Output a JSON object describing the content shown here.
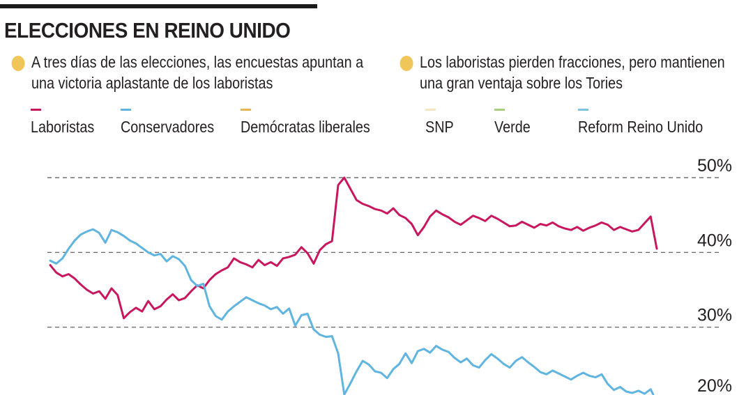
{
  "header": {
    "title": "ELECCIONES EN REINO UNIDO"
  },
  "notes": [
    "A tres días de las elecciones, las encuestas apuntan a una victoria aplastante de los laboristas",
    "Los laboristas pierden fracciones, pero mantienen una gran ventaja sobre los Tories"
  ],
  "colors": {
    "note_dot": "#f0c55a",
    "grid": "#555555"
  },
  "chart_data": {
    "type": "line",
    "title": "ELECCIONES EN REINO UNIDO",
    "xlabel": "",
    "ylabel": "",
    "ylim": [
      20,
      52
    ],
    "yticks": [
      20,
      30,
      40,
      50
    ],
    "ytick_labels": [
      "20%",
      "30%",
      "40%",
      "50%"
    ],
    "grid": true,
    "legend": [
      {
        "name": "Laboristas",
        "color": "#c8175e"
      },
      {
        "name": "Conservadores",
        "color": "#5fb4e0"
      },
      {
        "name": "Demócratas liberales",
        "color": "#eab259"
      },
      {
        "name": "SNP",
        "color": "#f5e6bf"
      },
      {
        "name": "Verde",
        "color": "#a9cf7a"
      },
      {
        "name": "Reform Reino Unido",
        "color": "#7cc3e6"
      }
    ],
    "series": [
      {
        "name": "Laboristas",
        "color": "#c8175e",
        "x": [
          0,
          1,
          2,
          3,
          4,
          5,
          6,
          7,
          8,
          9,
          10,
          11,
          12,
          13,
          14,
          15,
          16,
          17,
          18,
          19,
          20,
          21,
          22,
          23,
          24,
          25,
          26,
          27,
          28,
          29,
          30,
          31,
          32,
          33,
          34,
          35,
          36,
          37,
          38,
          39,
          40,
          41,
          42,
          43,
          44,
          45,
          46,
          47,
          48,
          49,
          50,
          51,
          52,
          53,
          54,
          55,
          56,
          57,
          58,
          59,
          60,
          61,
          62,
          63,
          64,
          65,
          66,
          67,
          68,
          69,
          70,
          71,
          72,
          73,
          74,
          75,
          76,
          77,
          78,
          79,
          80,
          81,
          82,
          83,
          84,
          85,
          86,
          87,
          88,
          89,
          90,
          91,
          92,
          93,
          94,
          95,
          96,
          97,
          98,
          99
        ],
        "values": [
          38.3,
          37.3,
          36.8,
          37.1,
          36.5,
          35.7,
          35.0,
          34.5,
          34.8,
          33.8,
          35.2,
          34.3,
          31.2,
          32.0,
          32.6,
          32.1,
          33.5,
          32.4,
          32.8,
          33.7,
          34.4,
          33.6,
          33.9,
          34.8,
          35.6,
          35.2,
          36.3,
          37.1,
          37.6,
          38.0,
          39.2,
          38.7,
          38.4,
          38.0,
          39.0,
          38.3,
          38.7,
          38.2,
          39.2,
          39.4,
          39.7,
          40.7,
          39.9,
          38.5,
          40.3,
          41.1,
          41.5,
          49.0,
          50.0,
          48.5,
          47.0,
          46.5,
          46.2,
          45.8,
          45.6,
          45.2,
          45.9,
          45.0,
          44.6,
          43.8,
          42.3,
          43.4,
          44.8,
          45.6,
          45.1,
          44.7,
          44.1,
          43.7,
          44.3,
          44.9,
          44.6,
          44.2,
          44.9,
          44.5,
          44.0,
          43.5,
          43.6,
          44.1,
          43.7,
          43.3,
          43.8,
          43.6,
          44.0,
          43.5,
          43.2,
          43.0,
          43.4,
          42.9,
          43.3,
          43.6,
          44.0,
          43.7,
          43.0,
          43.4,
          43.1,
          42.8,
          43.0,
          43.9,
          44.8,
          40.5
        ],
        "note": "x is an ordinal poll index (no x-axis labels shown)"
      },
      {
        "name": "Conservadores",
        "color": "#5fb4e0",
        "x": [
          0,
          1,
          2,
          3,
          4,
          5,
          6,
          7,
          8,
          9,
          10,
          11,
          12,
          13,
          14,
          15,
          16,
          17,
          18,
          19,
          20,
          21,
          22,
          23,
          24,
          25,
          26,
          27,
          28,
          29,
          30,
          31,
          32,
          33,
          34,
          35,
          36,
          37,
          38,
          39,
          40,
          41,
          42,
          43,
          44,
          45,
          46,
          47,
          48,
          49,
          50,
          51,
          52,
          53,
          54,
          55,
          56,
          57,
          58,
          59,
          60,
          61,
          62,
          63,
          64,
          65,
          66,
          67,
          68,
          69,
          70,
          71,
          72,
          73,
          74,
          75,
          76,
          77,
          78,
          79,
          80,
          81,
          82,
          83,
          84,
          85,
          86,
          87,
          88,
          89,
          90,
          91,
          92,
          93,
          94,
          95,
          96,
          97,
          98,
          99
        ],
        "values": [
          38.9,
          38.5,
          39.2,
          40.5,
          41.6,
          42.4,
          42.8,
          43.1,
          42.6,
          41.3,
          43.0,
          42.7,
          42.2,
          41.6,
          41.2,
          40.6,
          40.0,
          39.6,
          39.8,
          38.8,
          39.5,
          39.1,
          38.2,
          36.3,
          35.5,
          35.8,
          32.8,
          31.5,
          31.0,
          32.1,
          32.8,
          33.4,
          34.0,
          33.6,
          33.2,
          32.9,
          32.4,
          32.7,
          31.8,
          32.5,
          30.2,
          31.6,
          31.8,
          29.7,
          29.0,
          28.7,
          28.8,
          26.5,
          21.0,
          22.5,
          24.1,
          25.5,
          25.0,
          24.1,
          23.9,
          23.2,
          24.4,
          25.1,
          26.5,
          25.2,
          26.8,
          27.1,
          26.6,
          27.5,
          27.0,
          26.7,
          25.9,
          25.3,
          25.8,
          24.9,
          24.6,
          25.6,
          26.4,
          25.8,
          25.1,
          24.6,
          25.5,
          26.0,
          25.3,
          24.7,
          24.0,
          23.7,
          24.2,
          23.8,
          23.4,
          23.0,
          23.5,
          23.9,
          23.5,
          23.3,
          23.7,
          22.4,
          21.6,
          22.0,
          21.4,
          21.2,
          21.5,
          21.1,
          21.7,
          20.0
        ]
      }
    ]
  }
}
